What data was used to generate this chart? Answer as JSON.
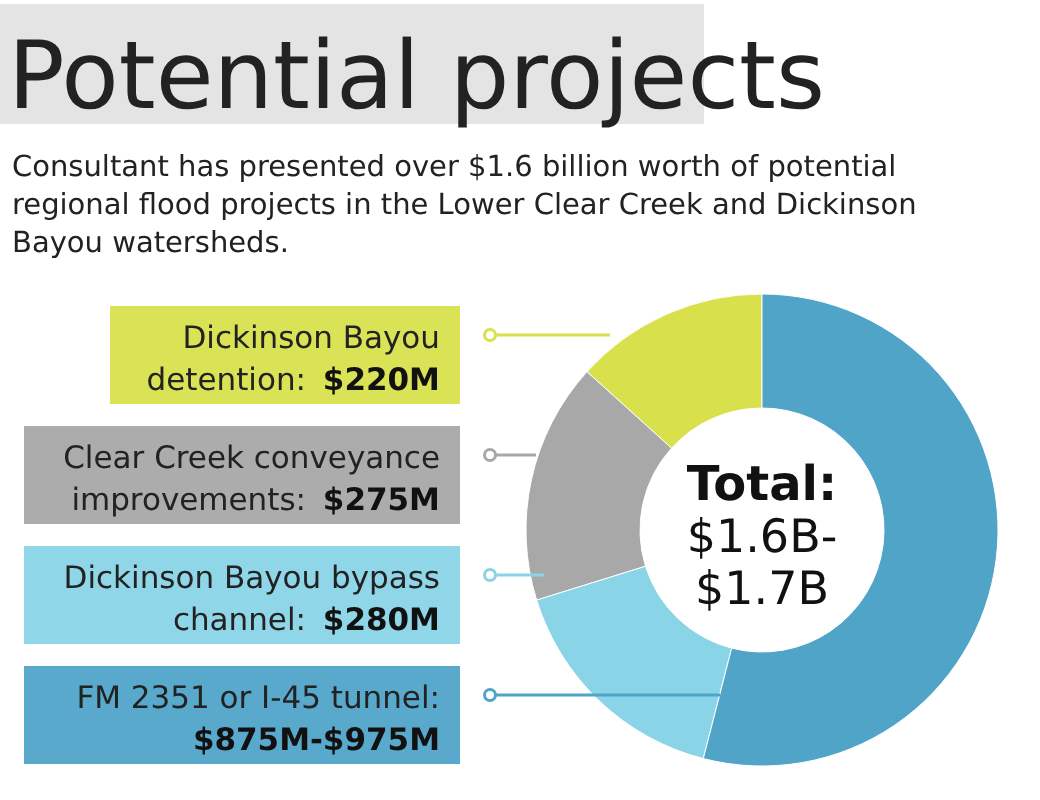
{
  "chart_data": {
    "type": "donut",
    "title": "Potential projects",
    "subtitle": "Consultant has presented over $1.6 billion worth of potential regional flood projects in the Lower Clear Creek and Dickinson Bayou watersheds.",
    "categories": [
      "Dickinson Bayou detention: $220M",
      "Clear Creek conveyance improvements: $275M",
      "Dickinson Bayou bypass channel: $280M",
      "FM 2351 or I-45 tunnel: $875M-$975M"
    ],
    "values": [
      13.3,
      16.5,
      16.2,
      54
    ],
    "colors": [
      "#d8e04c",
      "#a8a8a8",
      "#8ad4e8",
      "#4fa4c8"
    ],
    "legend": "left",
    "annotations": [
      "Total:",
      "$1.6B-",
      "$1.7B"
    ]
  }
}
